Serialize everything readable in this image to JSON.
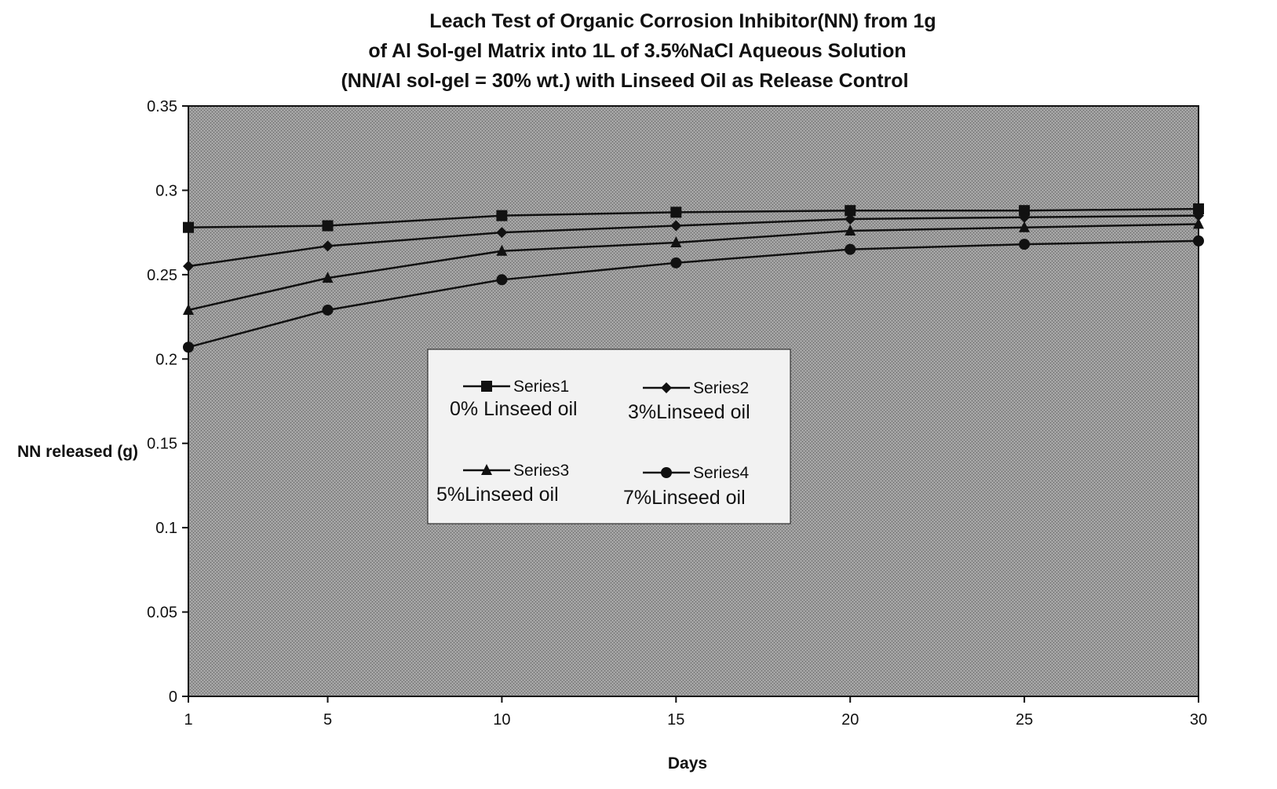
{
  "chart_data": {
    "type": "line",
    "title_lines": [
      "Leach Test of Organic Corrosion Inhibitor(NN) from 1g",
      "of Al Sol-gel Matrix into 1L of 3.5%NaCl Aqueous Solution",
      "(NN/Al sol-gel = 30% wt.) with Linseed Oil as Release Control"
    ],
    "xlabel": "Days",
    "ylabel": "NN released (g)",
    "x": [
      1,
      5,
      10,
      15,
      20,
      25,
      30
    ],
    "x_tick_labels": [
      "1",
      "5",
      "10",
      "15",
      "20",
      "25",
      "30"
    ],
    "y_ticks": [
      0,
      0.05,
      0.1,
      0.15,
      0.2,
      0.25,
      0.3,
      0.35
    ],
    "y_tick_labels": [
      "0",
      "0.05",
      "0.1",
      "0.15",
      "0.2",
      "0.25",
      "0.3",
      "0.35"
    ],
    "ylim": [
      0,
      0.35
    ],
    "grid": false,
    "legend_position": "center",
    "plot_background": "#8f8f8f",
    "line_color": "#111111",
    "series": [
      {
        "name": "Series1",
        "description": "0% Linseed oil",
        "marker": "square",
        "values": [
          0.278,
          0.279,
          0.285,
          0.287,
          0.288,
          0.288,
          0.289
        ]
      },
      {
        "name": "Series2",
        "description": "3%Linseed oil",
        "marker": "diamond",
        "values": [
          0.255,
          0.267,
          0.275,
          0.279,
          0.283,
          0.284,
          0.285
        ]
      },
      {
        "name": "Series3",
        "description": "5%Linseed oil",
        "marker": "triangle",
        "values": [
          0.229,
          0.248,
          0.264,
          0.269,
          0.276,
          0.278,
          0.28
        ]
      },
      {
        "name": "Series4",
        "description": "7%Linseed oil",
        "marker": "circle",
        "values": [
          0.207,
          0.229,
          0.247,
          0.257,
          0.265,
          0.268,
          0.27
        ]
      }
    ]
  }
}
